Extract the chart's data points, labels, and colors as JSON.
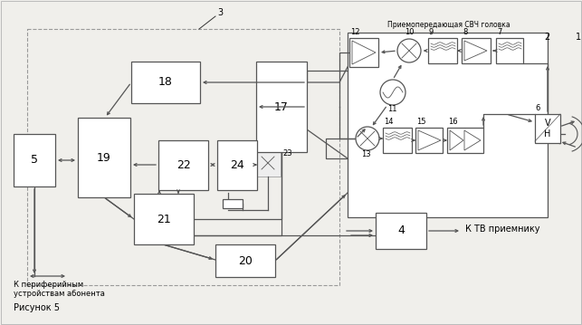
{
  "bg": "#f0efeb",
  "box_fc": "#ffffff",
  "lc": "#555555",
  "dc": "#999999",
  "svch_title": "Приемопередающая СВЧ головка",
  "lbl_right": "К ТВ приемнику",
  "lbl_bottom": "К периферийным\nустройствам абонента",
  "lbl_fig": "Рисунок 5",
  "lw": 0.9,
  "inner_lw": 0.6,
  "arrowscale": 5
}
